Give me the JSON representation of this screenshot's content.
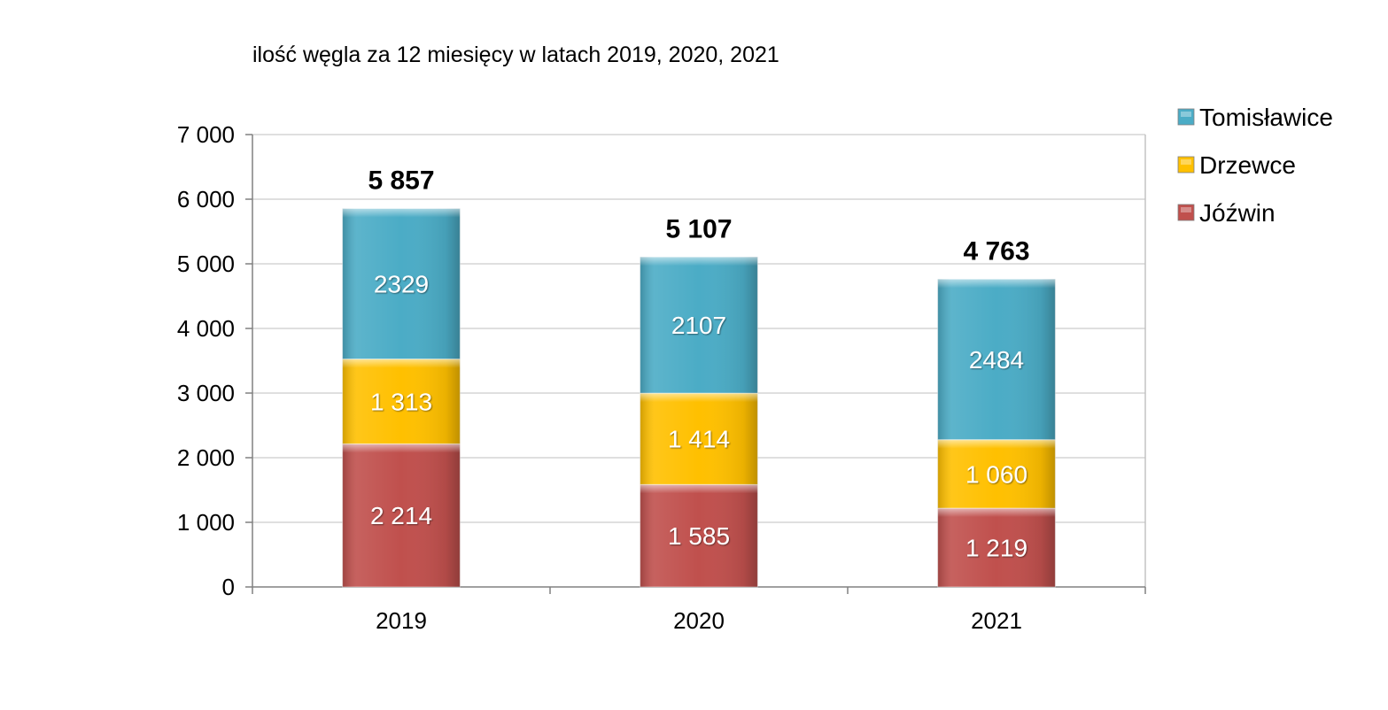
{
  "chart_data": {
    "type": "bar",
    "stacked": true,
    "title": "ilość węgla za  12 miesięcy w latach  2019, 2020, 2021",
    "categories": [
      "2019",
      "2020",
      "2021"
    ],
    "series": [
      {
        "name": "Jóźwin",
        "values": [
          2214,
          1585,
          1219
        ],
        "labels": [
          "2 214",
          "1 585",
          "1 219"
        ],
        "color": "#c0504d"
      },
      {
        "name": "Drzewce",
        "values": [
          1313,
          1414,
          1060
        ],
        "labels": [
          "1 313",
          "1 414",
          "1 060"
        ],
        "color": "#ffc000"
      },
      {
        "name": "Tomisławice",
        "values": [
          2329,
          2107,
          2484
        ],
        "labels": [
          "2329",
          "2107",
          "2484"
        ],
        "color": "#4bacc6"
      }
    ],
    "totals": [
      "5 857",
      "5 107",
      "4 763"
    ],
    "ylim": [
      0,
      7000
    ],
    "yticks": [
      0,
      1000,
      2000,
      3000,
      4000,
      5000,
      6000,
      7000
    ],
    "ytick_labels": [
      "0",
      "1 000",
      "2 000",
      "3 000",
      "4 000",
      "5 000",
      "6 000",
      "7 000"
    ],
    "grid": true,
    "legend_position": "top-right",
    "legend_order": [
      "Tomisławice",
      "Drzewce",
      "Jóźwin"
    ]
  }
}
